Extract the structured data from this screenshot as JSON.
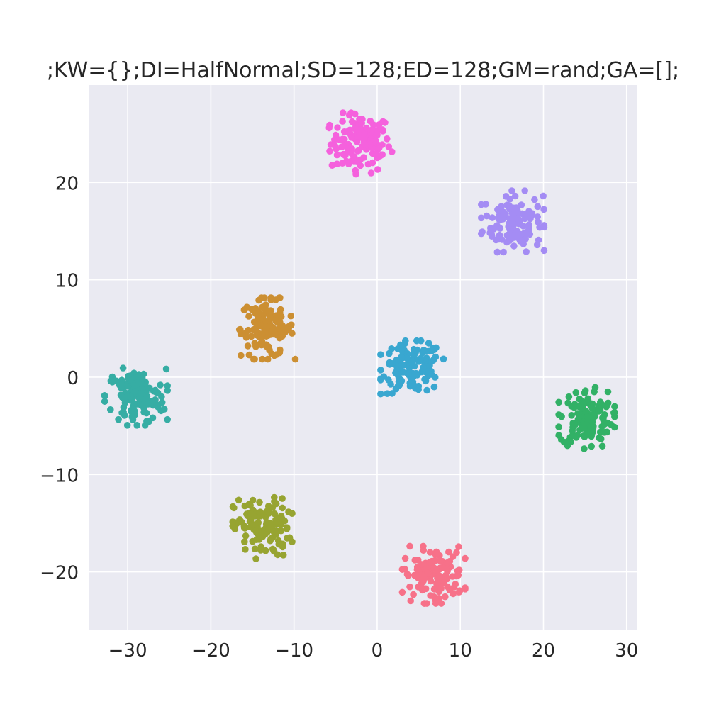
{
  "chart_data": {
    "type": "scatter",
    "title": ";KW={};DI=HalfNormal;SD=128;ED=128;GM=rand;GA=[];",
    "xlabel": "",
    "ylabel": "",
    "xlim": [
      -34.7,
      31.3
    ],
    "ylim": [
      -26.0,
      30.0
    ],
    "xticks": [
      -30,
      -20,
      -10,
      0,
      10,
      20,
      30
    ],
    "yticks": [
      -20,
      -10,
      0,
      10,
      20
    ],
    "xtick_labels": [
      "−30",
      "−20",
      "−10",
      "0",
      "10",
      "20",
      "30"
    ],
    "ytick_labels": [
      "−20",
      "−10",
      "0",
      "10",
      "20"
    ],
    "grid": true,
    "legend": "none",
    "background": "#eaeaf2",
    "grid_color": "#ffffff",
    "points_per_cluster": 128,
    "clusters": [
      {
        "color": "#f561dd",
        "center": [
          -2.0,
          24.0
        ],
        "spread": [
          1.8,
          1.5
        ]
      },
      {
        "color": "#a48cf4",
        "center": [
          16.3,
          16.0
        ],
        "spread": [
          1.8,
          1.5
        ]
      },
      {
        "color": "#cc8f32",
        "center": [
          -13.2,
          5.0
        ],
        "spread": [
          1.6,
          1.5
        ]
      },
      {
        "color": "#39a7d0",
        "center": [
          4.2,
          1.0
        ],
        "spread": [
          1.8,
          1.3
        ]
      },
      {
        "color": "#36ada4",
        "center": [
          -29.0,
          -2.0
        ],
        "spread": [
          1.8,
          1.4
        ]
      },
      {
        "color": "#32b166",
        "center": [
          25.2,
          -4.2
        ],
        "spread": [
          1.6,
          1.5
        ]
      },
      {
        "color": "#97a431",
        "center": [
          -13.8,
          -15.5
        ],
        "spread": [
          1.7,
          1.5
        ]
      },
      {
        "color": "#f77189",
        "center": [
          6.8,
          -20.3
        ],
        "spread": [
          1.8,
          1.4
        ]
      }
    ]
  }
}
